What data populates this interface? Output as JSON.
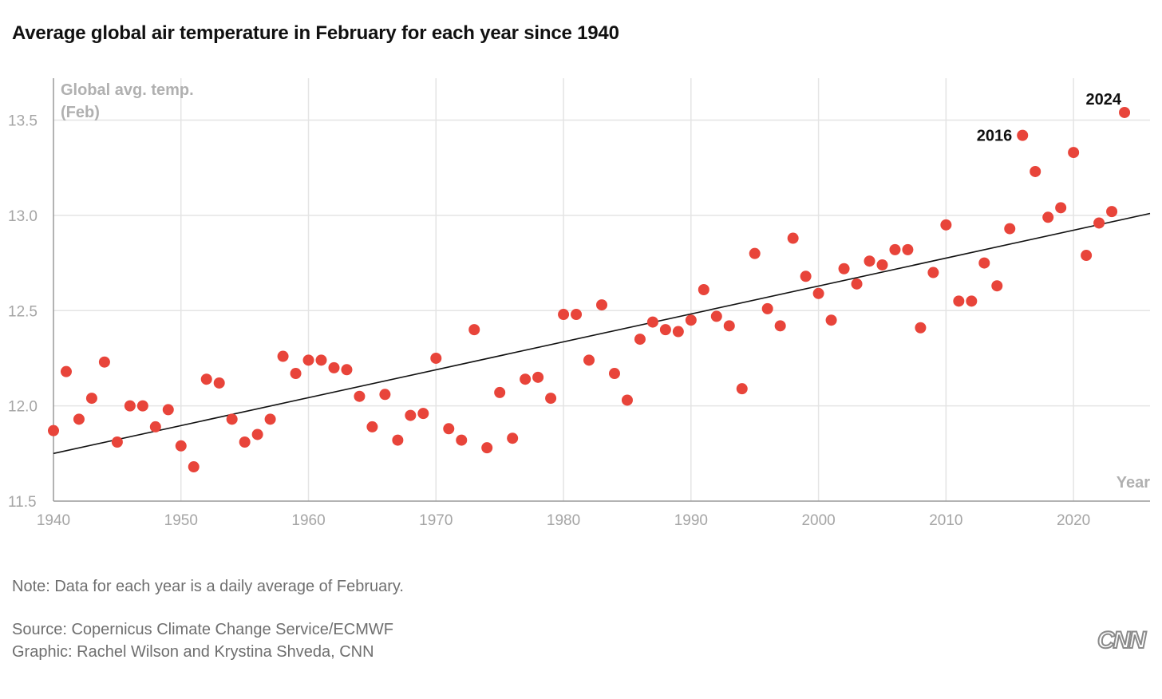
{
  "title": "Average global air temperature in February for each year since 1940",
  "note": "Note: Data for each year is a daily average of February.",
  "source": "Source: Copernicus Climate Change Service/ECMWF",
  "credit": "Graphic: Rachel Wilson and Krystina Shveda, CNN",
  "logo_text": "CNN",
  "colors": {
    "point": "#e8443a",
    "trend": "#111111",
    "grid": "#e4e4e4",
    "axis": "#9a9a9a"
  },
  "chart_data": {
    "type": "scatter",
    "title": "Average global air temperature in February for each year since 1940",
    "ylabel_lines": [
      "Global avg. temp.",
      "(Feb)"
    ],
    "xlabel": "Year",
    "xlim": [
      1940,
      2026
    ],
    "ylim": [
      11.5,
      13.72
    ],
    "x_ticks": [
      1940,
      1950,
      1960,
      1970,
      1980,
      1990,
      2000,
      2010,
      2020
    ],
    "x_tick_labels": [
      "1940",
      "1950",
      "1960",
      "1970",
      "1980",
      "1990",
      "2000",
      "2010",
      "2020"
    ],
    "y_ticks": [
      11.5,
      12.0,
      12.5,
      13.0,
      13.5
    ],
    "y_tick_labels": [
      "11.5",
      "12.0",
      "12.5",
      "13.0",
      "13.5"
    ],
    "grid": true,
    "trendline": {
      "x": [
        1940,
        2026
      ],
      "y": [
        11.75,
        13.01
      ]
    },
    "annotations": [
      {
        "x": 2016,
        "y": 13.42,
        "text": "2016"
      },
      {
        "x": 2024,
        "y": 13.54,
        "text": "2024"
      }
    ],
    "series": [
      {
        "x": [
          1940,
          1941,
          1942,
          1943,
          1944,
          1945,
          1946,
          1947,
          1948,
          1949,
          1950,
          1951,
          1952,
          1953,
          1954,
          1955,
          1956,
          1957,
          1958,
          1959,
          1960,
          1961,
          1962,
          1963,
          1964,
          1965,
          1966,
          1967,
          1968,
          1969,
          1970,
          1971,
          1972,
          1973,
          1974,
          1975,
          1976,
          1977,
          1978,
          1979,
          1980,
          1981,
          1982,
          1983,
          1984,
          1985,
          1986,
          1987,
          1988,
          1989,
          1990,
          1991,
          1992,
          1993,
          1994,
          1995,
          1996,
          1997,
          1998,
          1999,
          2000,
          2001,
          2002,
          2003,
          2004,
          2005,
          2006,
          2007,
          2008,
          2009,
          2010,
          2011,
          2012,
          2013,
          2014,
          2015,
          2016,
          2017,
          2018,
          2019,
          2020,
          2021,
          2022,
          2023,
          2024
        ],
        "y": [
          11.87,
          12.18,
          11.93,
          12.04,
          12.23,
          11.81,
          12.0,
          12.0,
          11.89,
          11.98,
          11.79,
          11.68,
          12.14,
          12.12,
          11.93,
          11.81,
          11.85,
          11.93,
          12.26,
          12.17,
          12.24,
          12.24,
          12.2,
          12.19,
          12.05,
          11.89,
          12.06,
          11.82,
          11.95,
          11.96,
          12.25,
          11.88,
          11.82,
          12.4,
          11.78,
          12.07,
          11.83,
          12.14,
          12.15,
          12.04,
          12.48,
          12.48,
          12.24,
          12.53,
          12.17,
          12.03,
          12.35,
          12.44,
          12.4,
          12.39,
          12.45,
          12.61,
          12.47,
          12.42,
          12.09,
          12.8,
          12.51,
          12.42,
          12.88,
          12.68,
          12.59,
          12.45,
          12.72,
          12.64,
          12.76,
          12.74,
          12.82,
          12.82,
          12.41,
          12.7,
          12.95,
          12.55,
          12.55,
          12.75,
          12.63,
          12.93,
          13.42,
          13.23,
          12.99,
          13.04,
          13.33,
          12.79,
          12.96,
          13.02,
          13.54
        ]
      }
    ]
  }
}
